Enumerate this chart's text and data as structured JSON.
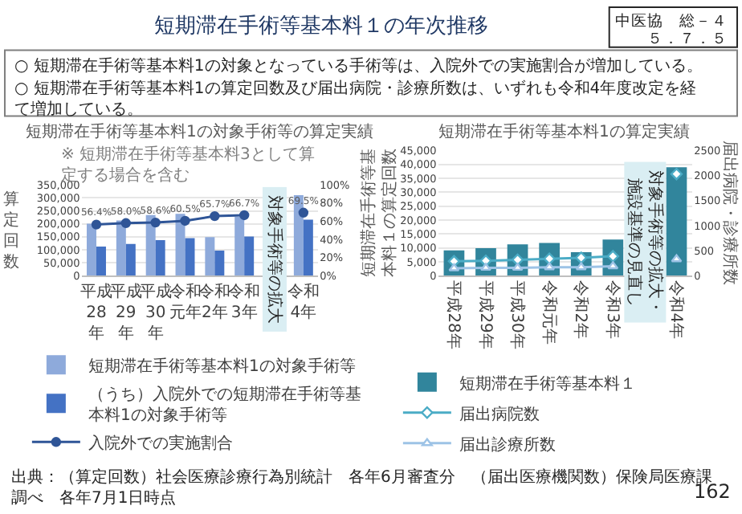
{
  "chart_data": [
    {
      "type": "bar",
      "title": "短期滞在手術等基本料1の対象手術等の算定実績",
      "ylabel": "算定回数",
      "categories": [
        "平成28年",
        "平成29年",
        "平成30年",
        "令和元年",
        "令和2年",
        "令和3年",
        null,
        "令和4年"
      ],
      "series": [
        {
          "name": "短期滞在手術等基本料1の対象手術等",
          "color": "#8eaadb",
          "values": [
            201000,
            213000,
            234000,
            239000,
            149000,
            227000,
            null,
            311000
          ]
        },
        {
          "name": "（うち）入院外での短期滞在手術等基本料1の対象手術等",
          "color": "#4472c4",
          "values": [
            113000,
            123000,
            137000,
            145000,
            97000,
            151000,
            null,
            216000
          ]
        },
        {
          "name": "入院外での実施割合",
          "type": "line",
          "axis": "y2",
          "color": "#2f5597",
          "marker": "circle",
          "values": [
            56.4,
            58.0,
            58.6,
            60.5,
            65.7,
            66.7,
            null,
            69.5
          ],
          "value_labels": [
            "56.4%",
            "58.0%",
            "58.6%",
            "60.5%",
            "65.7%",
            "66.7%",
            null,
            "69.5%"
          ]
        }
      ],
      "ylim": [
        0,
        350000
      ],
      "yticks": [
        0,
        {
          "value": 50000,
          "label": "50,000"
        },
        {
          "value": 100000,
          "label": "100,000"
        },
        {
          "value": 150000,
          "label": "150,000"
        },
        {
          "value": 200000,
          "label": "200,000"
        },
        {
          "value": 250000,
          "label": "250,000"
        },
        {
          "value": 300000,
          "label": "300,000"
        },
        {
          "value": 350000,
          "label": "350,000"
        }
      ],
      "y2lim": [
        0,
        100
      ],
      "y2ticks": [
        {
          "value": 0,
          "label": "0%"
        },
        {
          "value": 20,
          "label": "20%"
        },
        {
          "value": 40,
          "label": "40%"
        },
        {
          "value": 60,
          "label": "60%"
        },
        {
          "value": 80,
          "label": "80%"
        },
        {
          "value": 100,
          "label": "100%"
        }
      ],
      "grid": "y",
      "legend": "bottom",
      "annotations": [
        "短期滞在手術等基本料１の年次推移",
        "中医協　総－４",
        "５．７．５",
        "○ 短期滞在手術等基本料1の対象となっている手術等は、入院外での実施割合が増加している。",
        "○ 短期滞在手術等基本料1の算定回数及び届出病院・診療所数は、いずれも令和4年度改定を経て増加している。",
        "※ 短期滞在手術等基本料3として算定する場合を含む",
        "出典：（算定回数）社会医療診療行為別統計　各年6月審査分　（届出医療機関数）保険局医療課調べ　各年7月1日時点",
        "162",
        {
          "text": "対象手術等の拡大"
        }
      ]
    },
    {
      "type": "bar",
      "title": "短期滞在手術等基本料1の算定実績",
      "ylabel": "短期滞在手術等基本料１の算定回数",
      "y2label": "届出病院・診療所数",
      "categories": [
        "平成28年",
        "平成29年",
        "平成30年",
        "令和元年",
        "令和2年",
        "令和3年",
        null,
        "令和4年"
      ],
      "series": [
        {
          "name": "短期滞在手術等基本料１",
          "color": "#31859c",
          "values": [
            9100,
            9900,
            11300,
            11800,
            8500,
            13000,
            null,
            39000
          ]
        },
        {
          "name": "届出病院数",
          "type": "line",
          "axis": "y2",
          "color": "#4bacc6",
          "marker": "diamond",
          "values": [
            290,
            300,
            320,
            340,
            360,
            390,
            null,
            2030
          ]
        },
        {
          "name": "届出診療所数",
          "type": "line",
          "axis": "y2",
          "color": "#9dc3e6",
          "marker": "triangle",
          "values": [
            150,
            160,
            160,
            170,
            170,
            190,
            null,
            330
          ]
        }
      ],
      "ylim": [
        0,
        45000
      ],
      "yticks": [
        0,
        {
          "value": 5000,
          "label": "5,000"
        },
        {
          "value": 10000,
          "label": "10,000"
        },
        {
          "value": 15000,
          "label": "15,000"
        },
        {
          "value": 20000,
          "label": "20,000"
        },
        {
          "value": 25000,
          "label": "25,000"
        },
        {
          "value": 30000,
          "label": "30,000"
        },
        {
          "value": 35000,
          "label": "35,000"
        },
        {
          "value": 40000,
          "label": "40,000"
        },
        {
          "value": 45000,
          "label": "45,000"
        }
      ],
      "y2lim": [
        0,
        2500
      ],
      "y2ticks": [
        0,
        500,
        1000,
        1500,
        2000,
        2500
      ],
      "grid": "y",
      "legend": "bottom",
      "annotations": [
        {
          "text": "対象手術等の拡大・施設基準の見直し"
        }
      ]
    }
  ]
}
